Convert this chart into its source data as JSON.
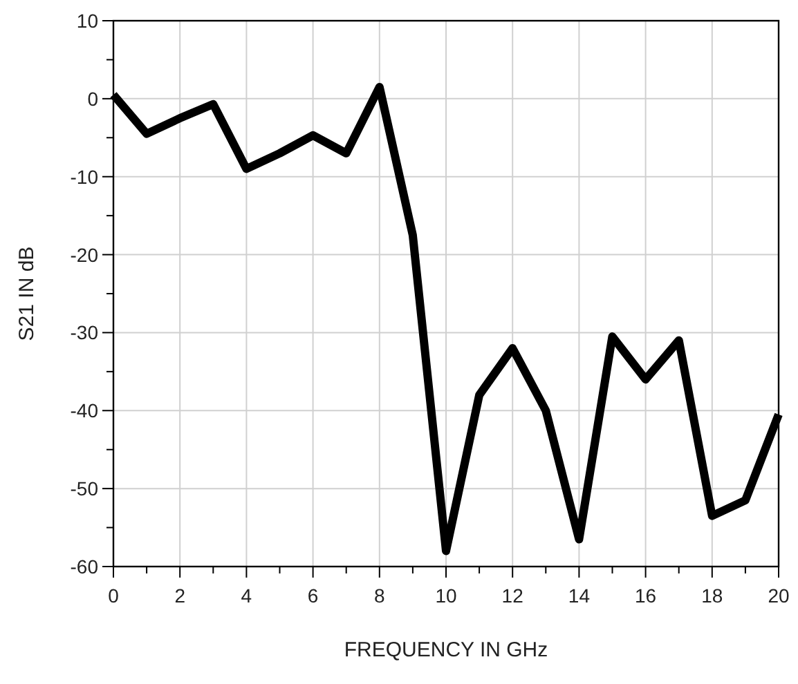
{
  "chart_data": {
    "type": "line",
    "xlabel": "FREQUENCY IN GHz",
    "ylabel": "S21 IN dB",
    "x": [
      0,
      1,
      2,
      3,
      4,
      5,
      6,
      7,
      8,
      9,
      10,
      11,
      12,
      13,
      14,
      15,
      16,
      17,
      18,
      19,
      20
    ],
    "series": [
      {
        "color": "#000000",
        "values": [
          0.5,
          -4.5,
          -2.5,
          -0.7,
          -9,
          -7,
          -4.7,
          -7,
          1.5,
          -17.5,
          -58,
          -38,
          -32,
          -40,
          -56.5,
          -30.5,
          -36,
          -31,
          -53.5,
          -51.5,
          -40.5
        ]
      }
    ],
    "xlim": [
      0,
      20
    ],
    "ylim": [
      -60,
      10
    ],
    "xticks": [
      0,
      {
        "value": 1,
        "label": null
      },
      2,
      {
        "value": 3,
        "label": null
      },
      4,
      {
        "value": 5,
        "label": null
      },
      6,
      {
        "value": 7,
        "label": null
      },
      8,
      {
        "value": 9,
        "label": null
      },
      10,
      {
        "value": 11,
        "label": null
      },
      12,
      {
        "value": 13,
        "label": null
      },
      14,
      {
        "value": 15,
        "label": null
      },
      16,
      {
        "value": 17,
        "label": null
      },
      18,
      {
        "value": 19,
        "label": null
      },
      20
    ],
    "yticks": [
      -60,
      {
        "value": -55,
        "label": null
      },
      -50,
      {
        "value": -45,
        "label": null
      },
      -40,
      {
        "value": -35,
        "label": null
      },
      -30,
      {
        "value": -25,
        "label": null
      },
      -20,
      {
        "value": -15,
        "label": null
      },
      -10,
      {
        "value": -5,
        "label": null
      },
      0,
      {
        "value": 5,
        "label": null
      },
      10
    ],
    "grid": true,
    "line_style": "solid",
    "marker": "none"
  }
}
